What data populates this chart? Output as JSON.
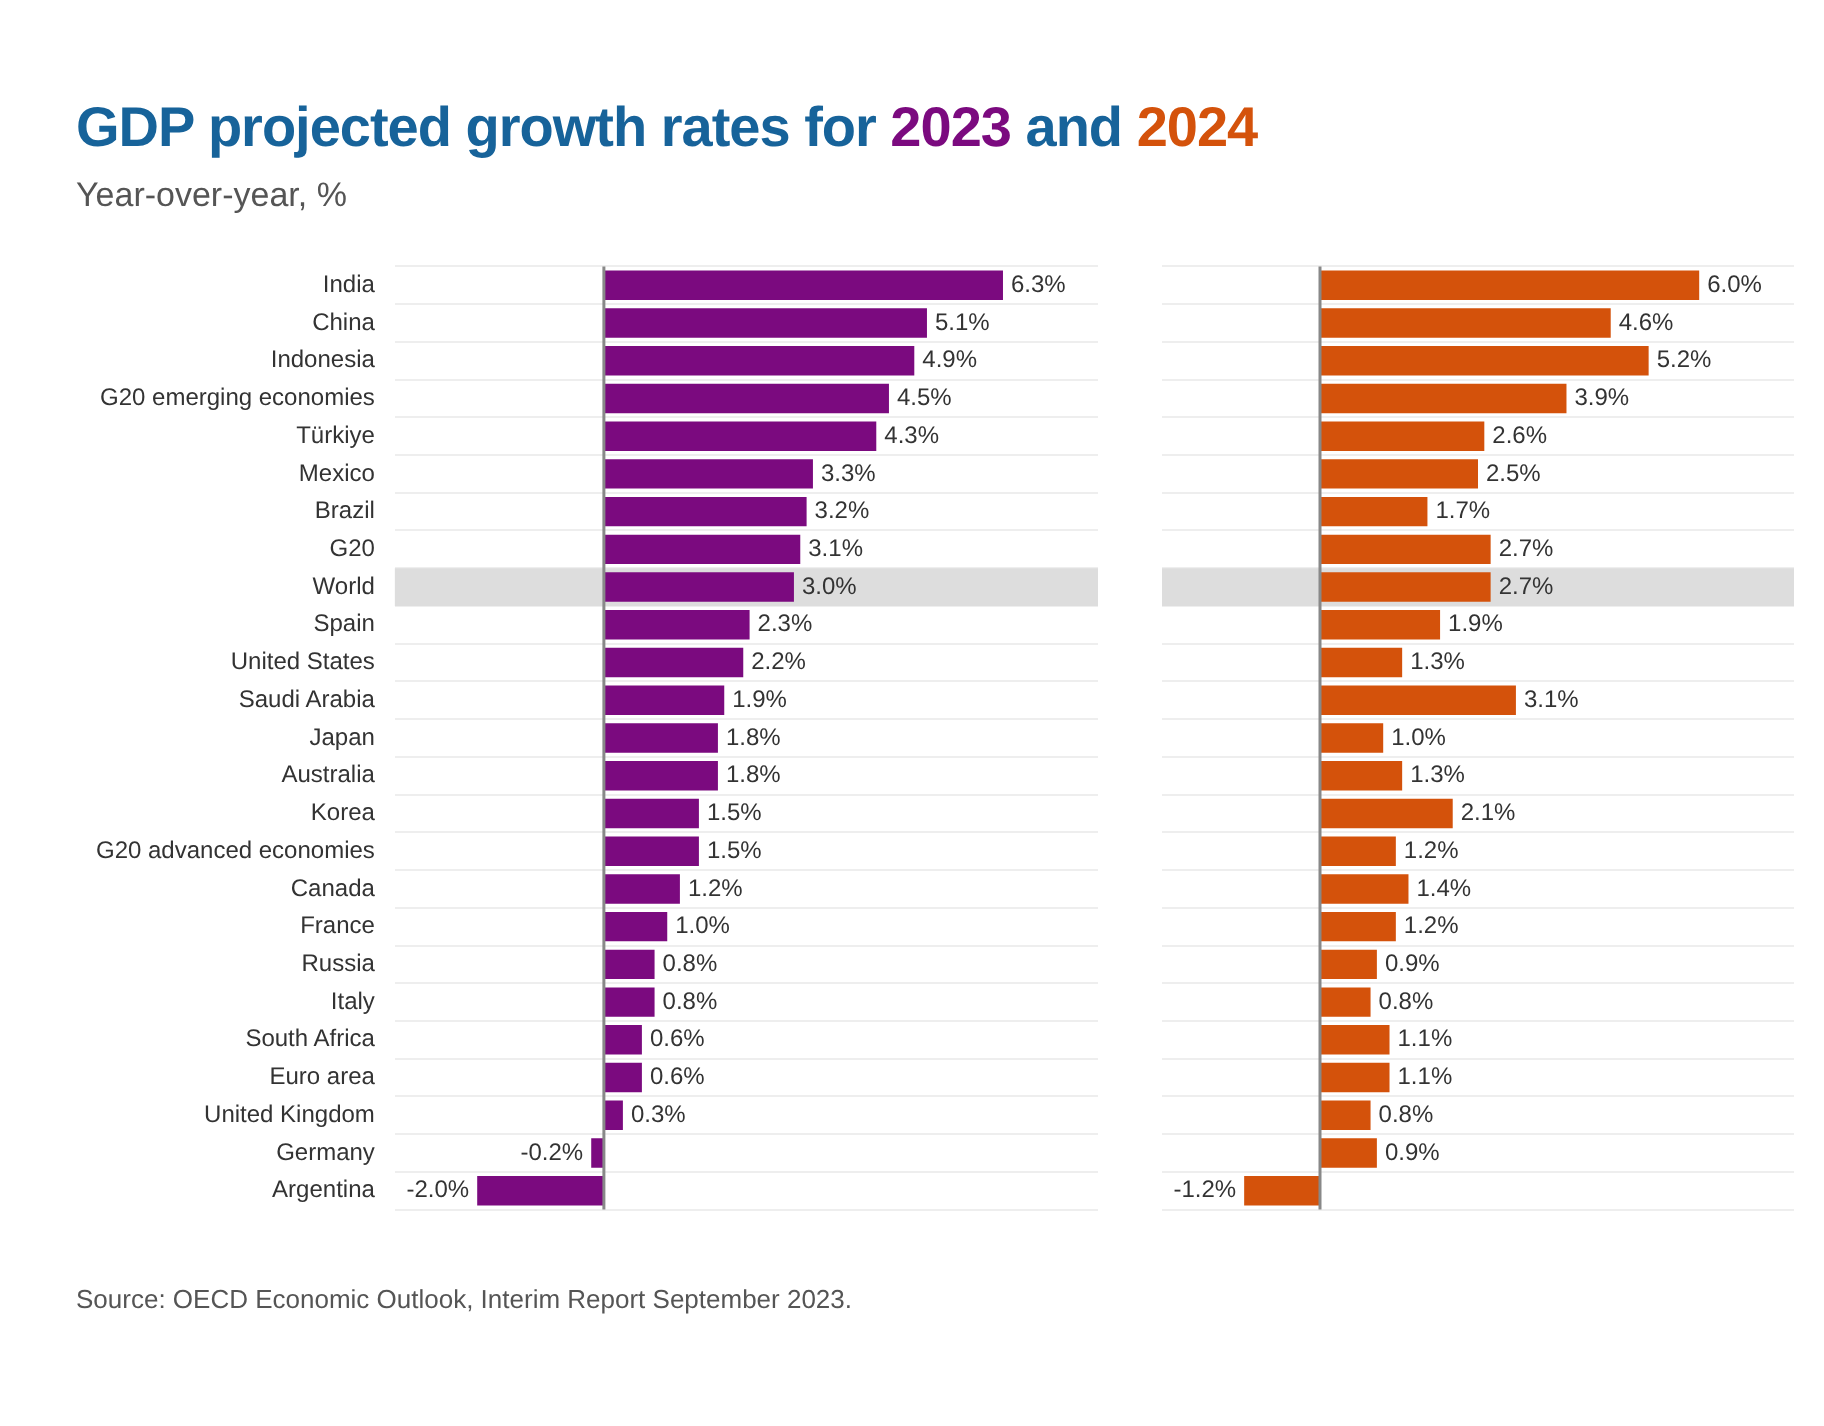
{
  "chart_data": [
    {
      "type": "bar",
      "orientation": "horizontal",
      "title": "GDP projected growth rates for 2023 and 2024",
      "subtitle": "Year-over-year, %",
      "annotations": [
        "Source: OECD Economic Outlook, Interim Report September 2023."
      ],
      "grid": "y",
      "categories": [
        "India",
        "China",
        "Indonesia",
        "G20 emerging economies",
        "Türkiye",
        "Mexico",
        "Brazil",
        "G20",
        "World",
        "Spain",
        "United States",
        "Saudi Arabia",
        "Japan",
        "Australia",
        "Korea",
        "G20 advanced economies",
        "Canada",
        "France",
        "Russia",
        "Italy",
        "South Africa",
        "Euro area",
        "United Kingdom",
        "Germany",
        "Argentina"
      ],
      "bands": [
        {
          "axis": "y",
          "from": "World",
          "to": "World",
          "color": "#dddddd"
        }
      ],
      "series": [
        {
          "color": "#7b0a7f",
          "values": [
            6.3,
            5.1,
            4.9,
            4.5,
            4.3,
            3.3,
            3.2,
            3.1,
            3.0,
            2.3,
            2.2,
            1.9,
            1.8,
            1.8,
            1.5,
            1.5,
            1.2,
            1.0,
            0.8,
            0.8,
            0.6,
            0.6,
            0.3,
            -0.2,
            -2.0
          ],
          "value_labels": [
            "6.3%",
            "5.1%",
            "4.9%",
            "4.5%",
            "4.3%",
            "3.3%",
            "3.2%",
            "3.1%",
            "3.0%",
            "2.3%",
            "2.2%",
            "1.9%",
            "1.8%",
            "1.8%",
            "1.5%",
            "1.5%",
            "1.2%",
            "1.0%",
            "0.8%",
            "0.8%",
            "0.6%",
            "0.6%",
            "0.3%",
            "-0.2%",
            "-2.0%"
          ]
        }
      ]
    },
    {
      "type": "bar",
      "orientation": "horizontal",
      "tick_labels": false,
      "grid": "y",
      "categories": [
        "India",
        "China",
        "Indonesia",
        "G20 emerging economies",
        "Türkiye",
        "Mexico",
        "Brazil",
        "G20",
        "World",
        "Spain",
        "United States",
        "Saudi Arabia",
        "Japan",
        "Australia",
        "Korea",
        "G20 advanced economies",
        "Canada",
        "France",
        "Russia",
        "Italy",
        "South Africa",
        "Euro area",
        "United Kingdom",
        "Germany",
        "Argentina"
      ],
      "bands": [
        {
          "axis": "y",
          "from": "World",
          "to": "World",
          "color": "#dddddd"
        }
      ],
      "series": [
        {
          "color": "#d4520b",
          "values": [
            6.0,
            4.6,
            5.2,
            3.9,
            2.6,
            2.5,
            1.7,
            2.7,
            2.7,
            1.9,
            1.3,
            3.1,
            1.0,
            1.3,
            2.1,
            1.2,
            1.4,
            1.2,
            0.9,
            0.8,
            1.1,
            1.1,
            0.8,
            0.9,
            -1.2
          ],
          "value_labels": [
            "6.0%",
            "4.6%",
            "5.2%",
            "3.9%",
            "2.6%",
            "2.5%",
            "1.7%",
            "2.7%",
            "2.7%",
            "1.9%",
            "1.3%",
            "3.1%",
            "1.0%",
            "1.3%",
            "2.1%",
            "1.2%",
            "1.4%",
            "1.2%",
            "0.9%",
            "0.8%",
            "1.1%",
            "1.1%",
            "0.8%",
            "0.9%",
            "-1.2%"
          ]
        }
      ]
    }
  ]
}
